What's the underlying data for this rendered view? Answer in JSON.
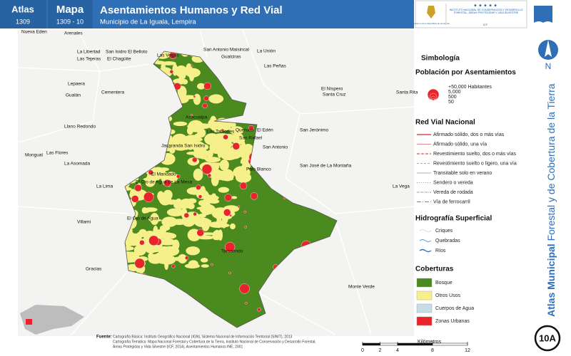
{
  "header": {
    "atlas_label": "Atlas",
    "atlas_code": "1309",
    "map_label": "Mapa",
    "map_code": "1309 - 10",
    "title": "Asentamientos Humanos y Red Vial",
    "subtitle": "Municipio de La Iguala, Lempira",
    "logo_left": "Gobierno de la República de Honduras",
    "logo_right": "Instituto Nacional de Conservación y Desarrollo Forestal, Áreas Protegidas y Vida Silvestre",
    "logo_acronym": "ICF"
  },
  "places": [
    "Nueva Eden",
    "Arenales",
    "La Libertad",
    "Las Tejeras",
    "San Isidro El Belloto",
    "El Chagüite",
    "Las Vegas",
    "San Antonio Maisincal",
    "Gualciras",
    "La Unión",
    "Las Peñas",
    "Lepaera",
    "Cementera",
    "Gualán",
    "El Níspero",
    "Santa Cruz",
    "Santa Rita",
    "Llano Redondo",
    "Azacualpa",
    "Los Tablones",
    "Queruco",
    "El Edén",
    "San Rafael",
    "San Jerónimo",
    "San Antonio",
    "Jacaranda San Isidro",
    "Mongual",
    "Las Flores",
    "La Asomada",
    "El Mandado",
    "Palo Blanco",
    "San José de La Montaña",
    "La Lima",
    "El Ojo de Agua de La Mesa",
    "La Vega",
    "El Ojo de Agua",
    "Villami",
    "Tamarindo",
    "Gracias",
    "Monte Verde"
  ],
  "legend": {
    "title": "Simbología",
    "population": {
      "title": "Población por Asentamientos",
      "labels": [
        "+50,000 Habitantes",
        "5,000",
        "500",
        "50"
      ]
    },
    "roads": {
      "title": "Red Vial Nacional",
      "items": [
        "Afirmado sólido, dos o más vías",
        "Afirmado sólido, una vía",
        "Revestimiento suelto, dos o más vías",
        "Revestimiento suelto o ligero, una vía",
        "Transitable solo en verano",
        "Sendero o vereda",
        "Vereda de rodada",
        "Vía de ferrocarril"
      ]
    },
    "hydro": {
      "title": "Hidrografía Superficial",
      "items": [
        "Criques",
        "Quebradas",
        "Ríos"
      ]
    },
    "cover": {
      "title": "Coberturas",
      "items": [
        {
          "label": "Bosque",
          "color": "#4a8a1e"
        },
        {
          "label": "Otros Usos",
          "color": "#f6f08a"
        },
        {
          "label": "Cuerpos de Agua",
          "color": "#c7dbe8"
        },
        {
          "label": "Zonas Urbanas",
          "color": "#e8242a"
        }
      ]
    }
  },
  "scale": {
    "unit": "Kilómetros",
    "ticks": [
      0,
      2,
      4,
      8,
      12
    ]
  },
  "source": {
    "label": "Fuente:",
    "lines": [
      "Cartografía Básica: Instituto Geográfico Nacional (IGN), Sistema Nacional de Información Territorial (SINIT), 2013",
      "Cartografía Temática: Mapa Nacional Forestal y Cobertura de la Tierra, Instituto Nacional de Conservación y Desarrollo Forestal,",
      "Áreas Protegidas y Vida Silvestre (ICF, 2014), Asentamientos Humanos INE, 2001"
    ]
  },
  "sidebar": {
    "north": "N",
    "title_bold": "Atlas Municipal",
    "title_rest": "Forestal y de Cobertura de la Tierra",
    "badge": "10A"
  }
}
